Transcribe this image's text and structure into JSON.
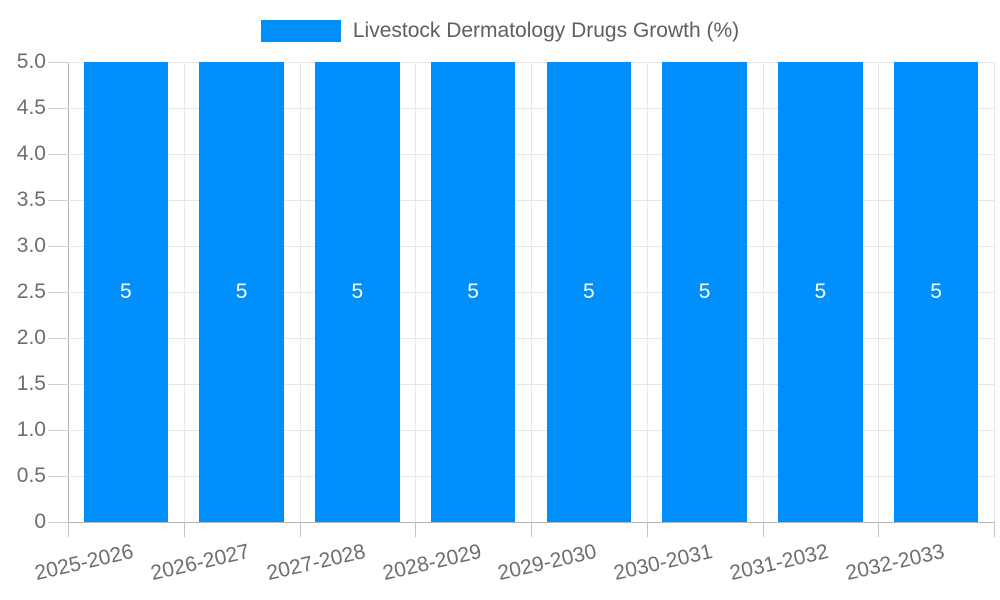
{
  "legend": {
    "label": "Livestock Dermatology Drugs Growth (%)"
  },
  "chart_data": {
    "type": "bar",
    "title": "Livestock Dermatology Drugs Growth (%)",
    "categories": [
      "2025-2026",
      "2026-2027",
      "2027-2028",
      "2028-2029",
      "2029-2030",
      "2030-2031",
      "2031-2032",
      "2032-2033"
    ],
    "series": [
      {
        "name": "Livestock Dermatology Drugs Growth (%)",
        "values": [
          5,
          5,
          5,
          5,
          5,
          5,
          5,
          5
        ]
      }
    ],
    "values": [
      5,
      5,
      5,
      5,
      5,
      5,
      5,
      5
    ],
    "bar_value_labels": [
      "5",
      "5",
      "5",
      "5",
      "5",
      "5",
      "5",
      "5"
    ],
    "xlabel": "",
    "ylabel": "",
    "ylim": [
      0,
      5
    ],
    "yticks": [
      0,
      0.5,
      1.0,
      1.5,
      2.0,
      2.5,
      3.0,
      3.5,
      4.0,
      4.5,
      5.0
    ],
    "ytick_labels": [
      "0",
      "0.5",
      "1.0",
      "1.5",
      "2.0",
      "2.5",
      "3.0",
      "3.5",
      "4.0",
      "4.5",
      "5.0"
    ],
    "grid": true,
    "legend_position": "top",
    "colors": {
      "bar": "#008FFB",
      "bar_value_text": "#ffffff",
      "gridline": "#e7e7e7",
      "axis_line": "#b6b6b6",
      "tick_mark": "#cfcfcf",
      "axis_label_text": "#6e6e6e",
      "legend_text": "#5f5f5f",
      "background": "#ffffff"
    }
  }
}
